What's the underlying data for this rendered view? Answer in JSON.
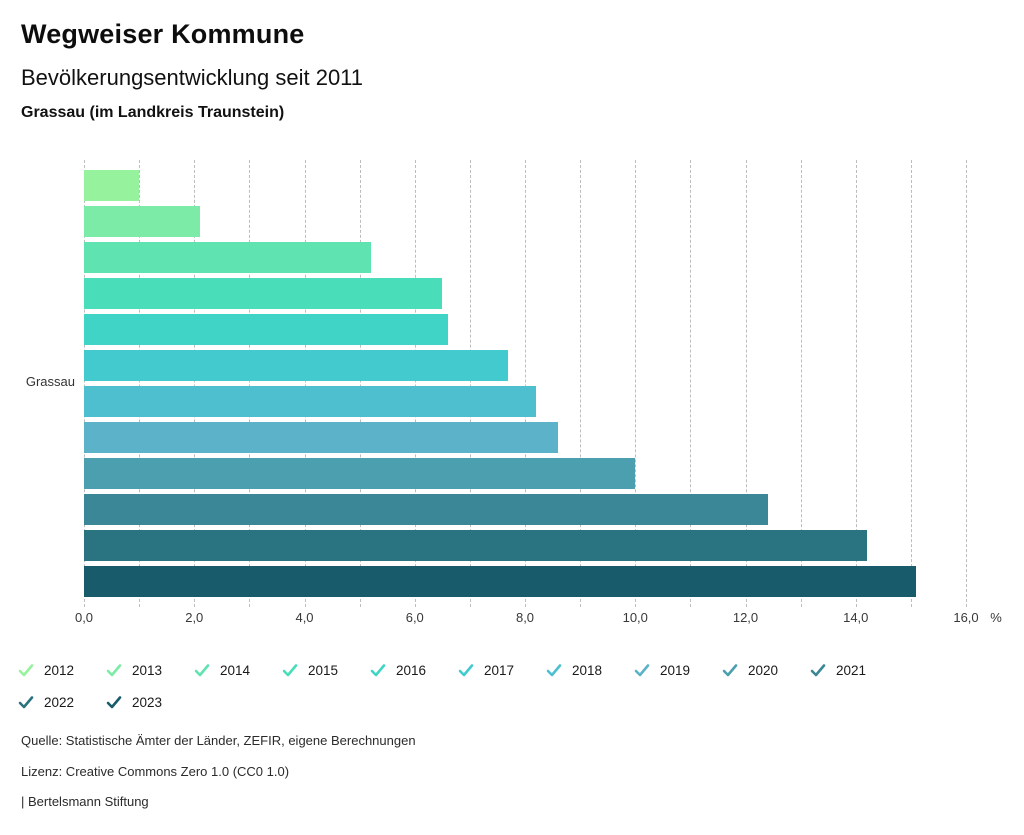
{
  "header": {
    "title": "Wegweiser Kommune",
    "subtitle": "Bevölkerungsentwicklung seit 2011",
    "region": "Grassau (im Landkreis Traunstein)"
  },
  "chart_data": {
    "type": "bar",
    "orientation": "horizontal",
    "title": "Bevölkerungsentwicklung seit 2011",
    "group_label": "Grassau",
    "xlabel": "",
    "ylabel": "Grassau",
    "unit": "%",
    "xlim": [
      0,
      16
    ],
    "grid": "vertical dashed gridlines every 1.0",
    "legend_position": "bottom",
    "legend_icon": "check",
    "x_tick_values": [
      0,
      2,
      4,
      6,
      8,
      10,
      12,
      14,
      16
    ],
    "x_tick_labels": [
      "0,0",
      "2,0",
      "4,0",
      "6,0",
      "8,0",
      "10,0",
      "12,0",
      "14,0",
      "16,0"
    ],
    "series": [
      {
        "name": "2012",
        "value": 1.0,
        "color": "#97F29D"
      },
      {
        "name": "2013",
        "value": 2.1,
        "color": "#7BEBA7"
      },
      {
        "name": "2014",
        "value": 5.2,
        "color": "#5FE3B0"
      },
      {
        "name": "2015",
        "value": 6.5,
        "color": "#4ADDB9"
      },
      {
        "name": "2016",
        "value": 6.6,
        "color": "#3FD4C6"
      },
      {
        "name": "2017",
        "value": 7.7,
        "color": "#42CACE"
      },
      {
        "name": "2018",
        "value": 8.2,
        "color": "#4DBFCF"
      },
      {
        "name": "2019",
        "value": 8.6,
        "color": "#5CB2C8"
      },
      {
        "name": "2020",
        "value": 10.0,
        "color": "#4C9FAF"
      },
      {
        "name": "2021",
        "value": 12.4,
        "color": "#3B8797"
      },
      {
        "name": "2022",
        "value": 14.2,
        "color": "#2A7380"
      },
      {
        "name": "2023",
        "value": 15.1,
        "color": "#185C6B"
      }
    ]
  },
  "footer": {
    "source": "Quelle: Statistische Ämter der Länder, ZEFIR, eigene Berechnungen",
    "license": "Lizenz: Creative Commons Zero 1.0 (CC0 1.0)",
    "brand": "| Bertelsmann Stiftung"
  }
}
